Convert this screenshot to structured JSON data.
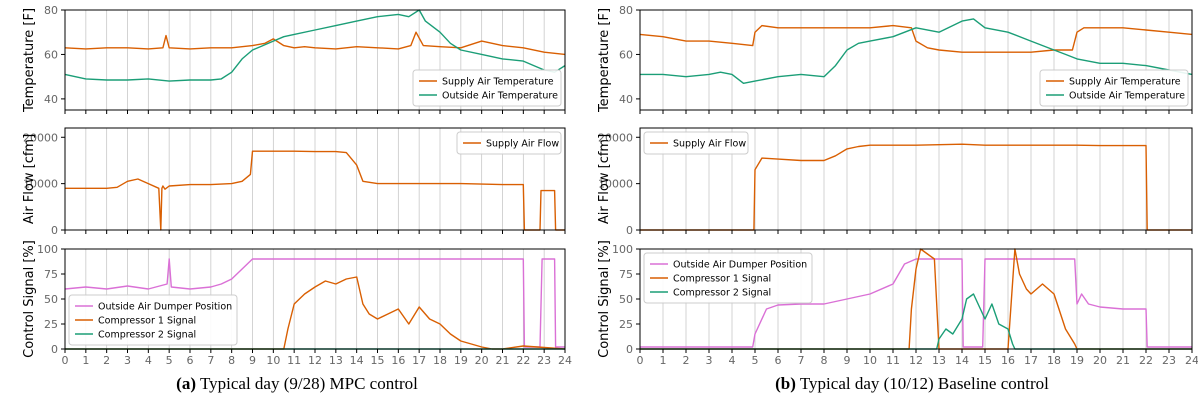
{
  "figure": {
    "captions": [
      {
        "tag": "(a)",
        "text": "Typical day (9/28) MPC control"
      },
      {
        "tag": "(b)",
        "text": "Typical day (10/12) Baseline control"
      }
    ],
    "colors": {
      "supply_air_temperature": "#D95F02",
      "outside_air_temperature": "#1B9E77",
      "supply_air_flow": "#D95F02",
      "outside_air_damper": "#DA70D6",
      "compressor_1": "#D95F02",
      "compressor_2": "#1B9E77",
      "grid": "#c8c8c8",
      "axis": "#000000",
      "tick_text": "#666666"
    }
  },
  "chart_data": [
    {
      "type": "line",
      "group": "a",
      "panel": "temperature",
      "ylabel": "Temperature [F]",
      "xlim": [
        0,
        24
      ],
      "ylim": [
        35,
        80
      ],
      "yticks": [
        40,
        60,
        80
      ],
      "x_ticks_labeled": false,
      "grid": "vertical",
      "legend": "bottom-right",
      "series": [
        {
          "name": "Supply Air Temperature",
          "color_key": "supply_air_temperature",
          "x": [
            0,
            1,
            2,
            3,
            4,
            4.7,
            4.85,
            5,
            6,
            7,
            8,
            8.5,
            9,
            9.6,
            10,
            10.5,
            11,
            11.5,
            12,
            13,
            14,
            15,
            16,
            16.6,
            16.85,
            17.2,
            18,
            19,
            20,
            21,
            22,
            23,
            23.5,
            24
          ],
          "y": [
            63,
            62.5,
            63,
            63,
            62.5,
            63,
            68.5,
            63,
            62.5,
            63,
            63,
            63.5,
            64,
            65,
            67,
            64,
            63,
            63.5,
            63,
            62.5,
            63.5,
            63,
            62.5,
            64,
            70,
            64,
            63.5,
            63,
            66,
            64,
            63,
            61,
            60.5,
            60
          ]
        },
        {
          "name": "Outside Air Temperature",
          "color_key": "outside_air_temperature",
          "x": [
            0,
            1,
            2,
            3,
            4,
            5,
            6,
            7,
            7.5,
            8,
            8.5,
            9,
            9.5,
            10,
            10.5,
            11,
            12,
            13,
            14,
            15,
            16,
            16.5,
            17,
            17.3,
            18,
            18.5,
            19,
            20,
            21,
            22,
            22.5,
            23,
            23.5,
            24
          ],
          "y": [
            51,
            49,
            48.5,
            48.5,
            49,
            48,
            48.5,
            48.5,
            49,
            52,
            58,
            62,
            64,
            66,
            68,
            69,
            71,
            73,
            75,
            77,
            78,
            77,
            80,
            75,
            70,
            65,
            62,
            60,
            58,
            57,
            55,
            53,
            52,
            55
          ]
        }
      ]
    },
    {
      "type": "line",
      "group": "a",
      "panel": "airflow",
      "ylabel": "Air Flow [cfm]",
      "xlim": [
        0,
        24
      ],
      "ylim": [
        0,
        22000
      ],
      "yticks": [
        0,
        10000,
        20000
      ],
      "x_ticks_labeled": false,
      "grid": "vertical",
      "legend": "top-right",
      "series": [
        {
          "name": "Supply Air Flow",
          "color_key": "supply_air_flow",
          "x": [
            0,
            1,
            2,
            2.5,
            3,
            3.5,
            4,
            4.5,
            4.6,
            4.65,
            4.7,
            4.8,
            5,
            6,
            7,
            8,
            8.5,
            8.9,
            9,
            10,
            11,
            12,
            13,
            13.5,
            14,
            14.3,
            15,
            16,
            17,
            18,
            19,
            20,
            21,
            22,
            22.05,
            22.1,
            22.8,
            22.85,
            22.9,
            23.5,
            23.55,
            23.6,
            24
          ],
          "x_comment": "",
          "y": [
            9000,
            9000,
            9000,
            9200,
            10500,
            11000,
            10000,
            9000,
            0,
            9000,
            9500,
            8800,
            9500,
            9800,
            9800,
            10000,
            10500,
            12000,
            17000,
            17000,
            17000,
            16900,
            16900,
            16700,
            14000,
            10500,
            10000,
            10000,
            10000,
            10000,
            10000,
            9900,
            9800,
            9800,
            0,
            0,
            0,
            8500,
            8500,
            8500,
            0,
            0,
            0
          ]
        }
      ]
    },
    {
      "type": "line",
      "group": "a",
      "panel": "control",
      "ylabel": "Control Signal [%]",
      "xlabel": "",
      "xlim": [
        0,
        24
      ],
      "ylim": [
        0,
        100
      ],
      "xticks": [
        0,
        1,
        2,
        3,
        4,
        5,
        6,
        7,
        8,
        9,
        10,
        11,
        12,
        13,
        14,
        15,
        16,
        17,
        18,
        19,
        20,
        21,
        22,
        23,
        24
      ],
      "yticks": [
        0,
        25,
        50,
        75,
        100
      ],
      "grid": "vertical",
      "legend": "bottom-left",
      "series": [
        {
          "name": "Outside Air Dumper Position",
          "color_key": "outside_air_damper",
          "x": [
            0,
            1,
            2,
            3,
            4,
            4.9,
            5,
            5.1,
            6,
            7,
            7.5,
            8,
            8.5,
            9,
            10,
            12,
            14,
            16,
            18,
            20,
            21,
            22,
            22.05,
            22.8,
            22.9,
            23.5,
            23.55,
            24
          ],
          "y": [
            60,
            62,
            60,
            63,
            60,
            65,
            90,
            62,
            60,
            62,
            65,
            70,
            80,
            90,
            90,
            90,
            90,
            90,
            90,
            90,
            90,
            90,
            2,
            2,
            90,
            90,
            2,
            2
          ]
        },
        {
          "name": "Compressor 1 Signal",
          "color_key": "compressor_1",
          "x": [
            0,
            10.5,
            10.7,
            11,
            11.5,
            12,
            12.5,
            13,
            13.5,
            14,
            14.3,
            14.6,
            15,
            15.5,
            16,
            16.5,
            17,
            17.5,
            18,
            18.5,
            19,
            19.5,
            20,
            20.5,
            21,
            22,
            24
          ],
          "y": [
            0,
            0,
            20,
            45,
            55,
            62,
            68,
            65,
            70,
            72,
            45,
            35,
            30,
            35,
            40,
            25,
            42,
            30,
            25,
            15,
            8,
            5,
            2,
            0,
            0,
            3,
            0
          ]
        },
        {
          "name": "Compressor 2 Signal",
          "color_key": "compressor_2",
          "x": [
            0,
            24
          ],
          "y": [
            0,
            0
          ]
        }
      ]
    },
    {
      "type": "line",
      "group": "b",
      "panel": "temperature",
      "ylabel": "Temperature [F]",
      "xlim": [
        0,
        24
      ],
      "ylim": [
        35,
        80
      ],
      "yticks": [
        40,
        60,
        80
      ],
      "x_ticks_labeled": false,
      "grid": "vertical",
      "legend": "bottom-right",
      "series": [
        {
          "name": "Supply Air Temperature",
          "color_key": "supply_air_temperature",
          "x": [
            0,
            1,
            2,
            3,
            4,
            4.9,
            5,
            5.3,
            6,
            7,
            8,
            9,
            10,
            11,
            11.8,
            12,
            12.5,
            13,
            14,
            15,
            16,
            17,
            18,
            18.8,
            19,
            19.3,
            20,
            21,
            22,
            23,
            24
          ],
          "y": [
            69,
            68,
            66,
            66,
            65,
            64,
            70,
            73,
            72,
            72,
            72,
            72,
            72,
            73,
            72,
            66,
            63,
            62,
            61,
            61,
            61,
            61,
            62,
            62,
            70,
            72,
            72,
            72,
            71,
            70,
            69
          ]
        },
        {
          "name": "Outside Air Temperature",
          "color_key": "outside_air_temperature",
          "x": [
            0,
            1,
            2,
            3,
            3.5,
            4,
            4.5,
            5,
            6,
            7,
            8,
            8.5,
            9,
            9.5,
            10,
            11,
            12,
            13,
            14,
            14.5,
            15,
            16,
            17,
            18,
            18.5,
            19,
            20,
            21,
            22,
            23,
            24
          ],
          "y": [
            51,
            51,
            50,
            51,
            52,
            51,
            47,
            48,
            50,
            51,
            50,
            55,
            62,
            65,
            66,
            68,
            72,
            70,
            75,
            76,
            72,
            70,
            66,
            62,
            60,
            58,
            56,
            56,
            55,
            53,
            51
          ]
        }
      ]
    },
    {
      "type": "line",
      "group": "b",
      "panel": "airflow",
      "ylabel": "Air Flow [cfm]",
      "xlim": [
        0,
        24
      ],
      "ylim": [
        0,
        22000
      ],
      "yticks": [
        0,
        10000,
        20000
      ],
      "x_ticks_labeled": false,
      "grid": "vertical",
      "legend": "top-left",
      "series": [
        {
          "name": "Supply Air Flow",
          "color_key": "supply_air_flow",
          "x": [
            0,
            4.95,
            5,
            5.3,
            6,
            7,
            8,
            8.5,
            9,
            9.5,
            10,
            11,
            12,
            13,
            14,
            15,
            16,
            17,
            18,
            19,
            20,
            21,
            22,
            22.05,
            24
          ],
          "y": [
            0,
            0,
            13000,
            15500,
            15300,
            15000,
            15000,
            16000,
            17500,
            18000,
            18300,
            18300,
            18300,
            18400,
            18500,
            18300,
            18300,
            18300,
            18300,
            18300,
            18200,
            18200,
            18200,
            0,
            0
          ]
        }
      ]
    },
    {
      "type": "line",
      "group": "b",
      "panel": "control",
      "ylabel": "Control Signal [%]",
      "xlabel": "",
      "xlim": [
        0,
        24
      ],
      "ylim": [
        0,
        100
      ],
      "xticks": [
        0,
        1,
        2,
        3,
        4,
        5,
        6,
        7,
        8,
        9,
        10,
        11,
        12,
        13,
        14,
        15,
        16,
        17,
        18,
        19,
        20,
        21,
        22,
        23,
        24
      ],
      "yticks": [
        0,
        25,
        50,
        75,
        100
      ],
      "grid": "vertical",
      "legend": "top-left",
      "series": [
        {
          "name": "Outside Air Dumper Position",
          "color_key": "outside_air_damper",
          "x": [
            0,
            4.9,
            5,
            5.5,
            6,
            7,
            8,
            9,
            10,
            11,
            11.5,
            12,
            13,
            14,
            14.05,
            14.5,
            14.9,
            15,
            16,
            17,
            18,
            18.9,
            19,
            19.2,
            19.5,
            20,
            21,
            22,
            22.05,
            24
          ],
          "y": [
            2,
            2,
            15,
            40,
            44,
            45,
            45,
            50,
            55,
            65,
            85,
            90,
            90,
            90,
            2,
            2,
            2,
            90,
            90,
            90,
            90,
            90,
            45,
            55,
            45,
            42,
            40,
            40,
            2,
            2
          ]
        },
        {
          "name": "Compressor 1 Signal",
          "color_key": "compressor_1",
          "x": [
            0,
            11.7,
            11.8,
            12,
            12.2,
            12.5,
            12.8,
            13,
            13.5,
            14,
            15,
            15.5,
            16,
            16.3,
            16.5,
            16.8,
            17,
            17.5,
            18,
            18.5,
            18.9,
            19,
            24
          ],
          "y": [
            0,
            0,
            40,
            80,
            100,
            95,
            90,
            0,
            0,
            0,
            0,
            0,
            0,
            100,
            75,
            60,
            55,
            65,
            55,
            20,
            5,
            0,
            0
          ]
        },
        {
          "name": "Compressor 2 Signal",
          "color_key": "compressor_2",
          "x": [
            0,
            12.9,
            13,
            13.3,
            13.6,
            14,
            14.2,
            14.5,
            14.8,
            15,
            15.3,
            15.6,
            16,
            16.2,
            16.3,
            24
          ],
          "y": [
            0,
            0,
            10,
            20,
            15,
            30,
            50,
            55,
            40,
            30,
            45,
            25,
            20,
            5,
            0,
            0
          ]
        }
      ]
    }
  ]
}
